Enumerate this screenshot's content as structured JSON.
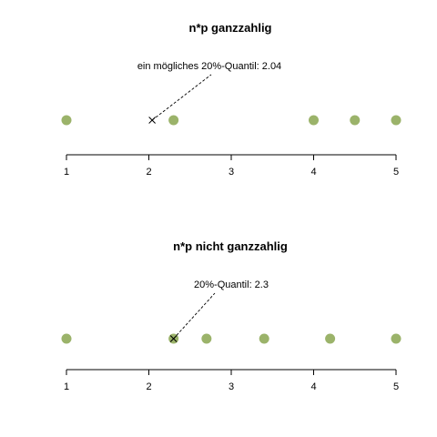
{
  "chart_data": [
    {
      "type": "scatter",
      "title": "n*p ganzzahlig",
      "x": [
        1,
        2.3,
        4,
        4.5,
        5
      ],
      "xlim": [
        1,
        5
      ],
      "xticks": [
        "1",
        "2",
        "3",
        "4",
        "5"
      ],
      "point_color": "#9BB36A",
      "annotation": {
        "text": "ein mögliches 20%-Quantil: 2.04",
        "value": 2.04
      }
    },
    {
      "type": "scatter",
      "title": "n*p nicht ganzzahlig",
      "x": [
        1,
        2.3,
        2.7,
        3.4,
        4.2,
        5
      ],
      "xlim": [
        1,
        5
      ],
      "xticks": [
        "1",
        "2",
        "3",
        "4",
        "5"
      ],
      "point_color": "#9BB36A",
      "annotation": {
        "text": "20%-Quantil: 2.3",
        "value": 2.3
      }
    }
  ]
}
